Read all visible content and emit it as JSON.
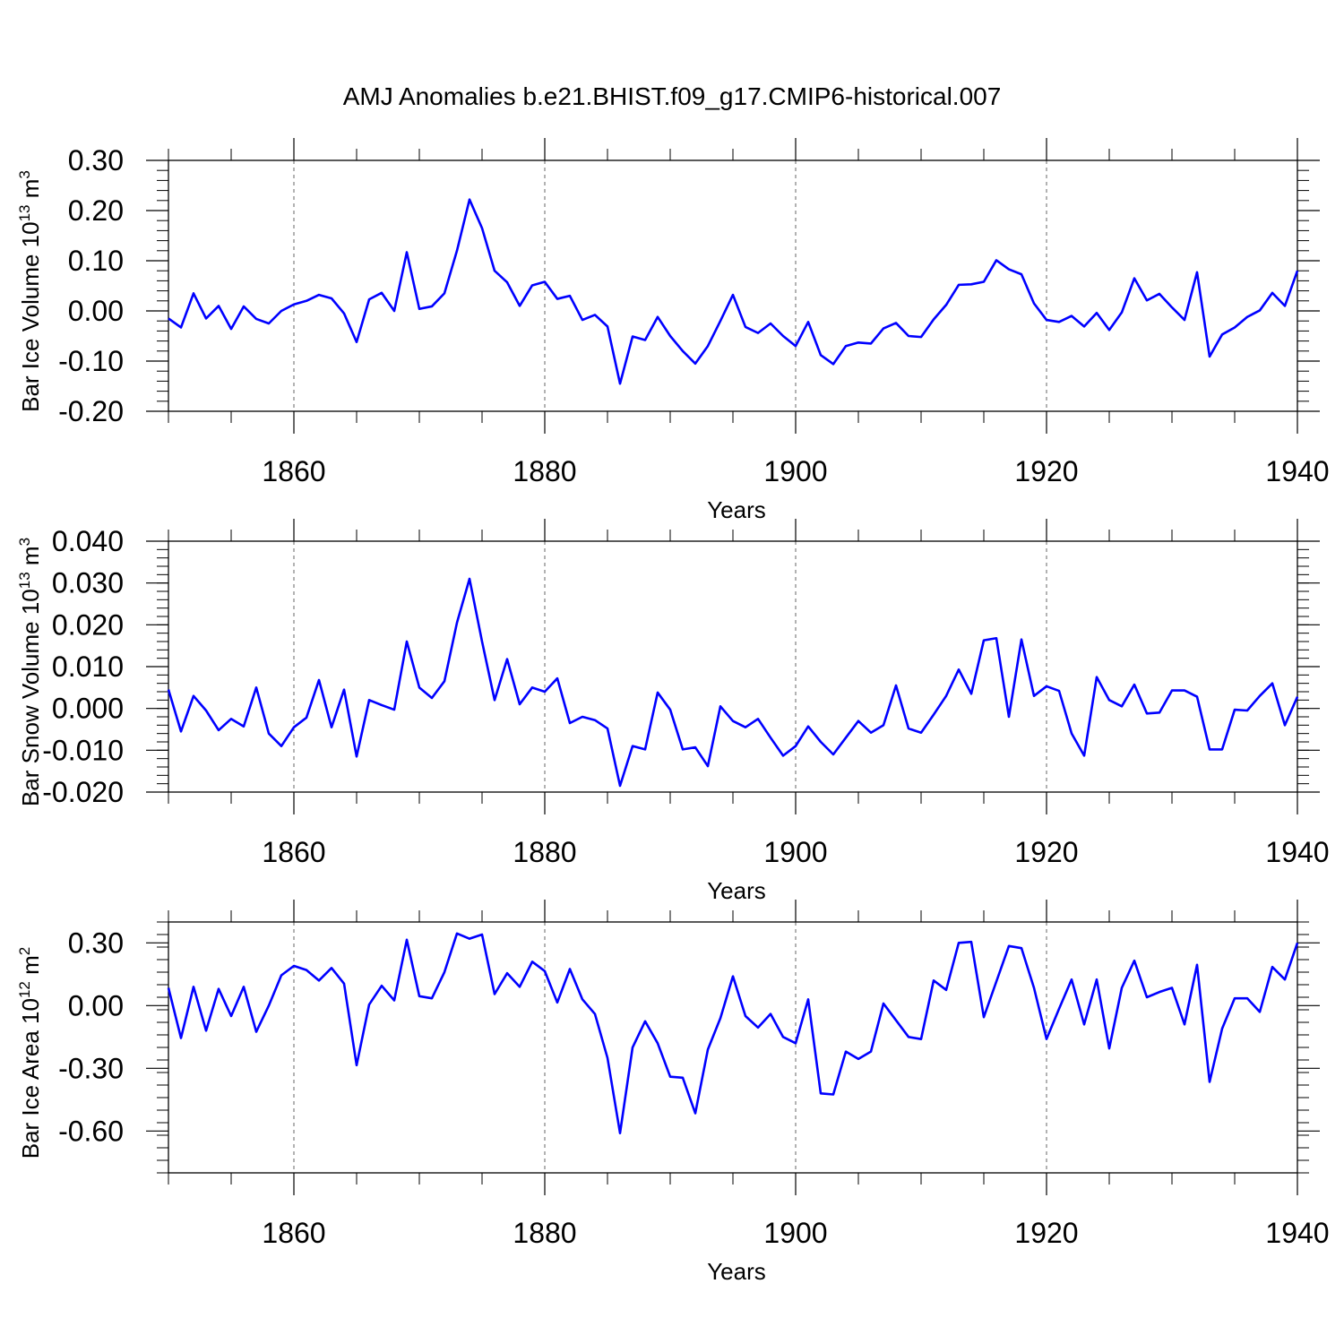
{
  "title": "AMJ Anomalies b.e21.BHIST.f09_g17.CMIP6-historical.007",
  "colors": {
    "series": "#0000ff",
    "axis": "#000000",
    "grid": "#666666"
  },
  "chart_data": [
    {
      "type": "line",
      "name": "Bar Ice Volume",
      "ylabel": "Bar Ice Volume 10^13 m^3",
      "ylabel_parts": {
        "base": "Bar Ice Volume 10",
        "exp1": "13",
        "unit": " m",
        "exp2": "3"
      },
      "xlabel": "Years",
      "xlim": [
        1850,
        1940
      ],
      "ylim": [
        -0.2,
        0.3
      ],
      "yticks": [
        -0.2,
        -0.1,
        0.0,
        0.1,
        0.2,
        0.3
      ],
      "ytick_labels": [
        "-0.20",
        "-0.10",
        "0.00",
        "0.10",
        "0.20",
        "0.30"
      ],
      "yminor_step": 0.02,
      "xticks": [
        1860,
        1880,
        1900,
        1920,
        1940
      ],
      "xtick_labels": [
        "1860",
        "1880",
        "1900",
        "1920",
        "1940"
      ],
      "x_start": 1850,
      "values": [
        -0.015,
        -0.033,
        0.035,
        -0.015,
        0.01,
        -0.036,
        0.009,
        -0.016,
        -0.025,
        0.0,
        0.013,
        0.02,
        0.032,
        0.025,
        -0.005,
        -0.062,
        0.023,
        0.036,
        0.0,
        0.117,
        0.004,
        0.009,
        0.035,
        0.12,
        0.222,
        0.165,
        0.08,
        0.057,
        0.01,
        0.051,
        0.058,
        0.024,
        0.03,
        -0.018,
        -0.008,
        -0.031,
        -0.145,
        -0.051,
        -0.058,
        -0.012,
        -0.05,
        -0.08,
        -0.105,
        -0.07,
        -0.02,
        0.032,
        -0.032,
        -0.044,
        -0.025,
        -0.05,
        -0.07,
        -0.022,
        -0.088,
        -0.106,
        -0.07,
        -0.063,
        -0.065,
        -0.035,
        -0.024,
        -0.05,
        -0.052,
        -0.017,
        0.012,
        0.052,
        0.053,
        0.058,
        0.101,
        0.083,
        0.073,
        0.015,
        -0.018,
        -0.022,
        -0.01,
        -0.031,
        -0.004,
        -0.038,
        -0.003,
        0.065,
        0.021,
        0.034,
        0.007,
        -0.018,
        0.077,
        -0.091,
        -0.047,
        -0.033,
        -0.012,
        0.001,
        0.036,
        0.01,
        0.08
      ]
    },
    {
      "type": "line",
      "name": "Bar Snow Volume",
      "ylabel": "Bar Snow Volume 10^13 m^3",
      "ylabel_parts": {
        "base": "Bar Snow Volume 10",
        "exp1": "13",
        "unit": " m",
        "exp2": "3"
      },
      "xlabel": "Years",
      "xlim": [
        1850,
        1940
      ],
      "ylim": [
        -0.02,
        0.04
      ],
      "yticks": [
        -0.02,
        -0.01,
        0.0,
        0.01,
        0.02,
        0.03,
        0.04
      ],
      "ytick_labels": [
        "-0.020",
        "-0.010",
        "0.000",
        "0.010",
        "0.020",
        "0.030",
        "0.040"
      ],
      "yminor_step": 0.002,
      "xticks": [
        1860,
        1880,
        1900,
        1920,
        1940
      ],
      "xtick_labels": [
        "1860",
        "1880",
        "1900",
        "1920",
        "1940"
      ],
      "x_start": 1850,
      "values": [
        0.0045,
        -0.0055,
        0.003,
        -0.0005,
        -0.0052,
        -0.0025,
        -0.0043,
        0.005,
        -0.006,
        -0.009,
        -0.0045,
        -0.0022,
        0.0068,
        -0.0045,
        0.0045,
        -0.0115,
        0.002,
        0.0008,
        -0.0003,
        0.016,
        0.005,
        0.0025,
        0.0065,
        0.0205,
        0.031,
        0.016,
        0.002,
        0.0118,
        0.001,
        0.005,
        0.004,
        0.0072,
        -0.0035,
        -0.002,
        -0.0028,
        -0.0048,
        -0.0185,
        -0.009,
        -0.0098,
        0.0038,
        -0.0003,
        -0.0098,
        -0.0093,
        -0.0138,
        0.0005,
        -0.003,
        -0.0045,
        -0.0025,
        -0.007,
        -0.0113,
        -0.009,
        -0.0043,
        -0.008,
        -0.011,
        -0.007,
        -0.003,
        -0.0058,
        -0.004,
        0.0055,
        -0.0048,
        -0.0058,
        -0.0015,
        0.003,
        0.0093,
        0.0035,
        0.0163,
        0.0168,
        -0.002,
        0.0165,
        0.003,
        0.0053,
        0.0042,
        -0.006,
        -0.0113,
        0.0075,
        0.002,
        0.0005,
        0.0057,
        -0.0012,
        -0.001,
        0.0043,
        0.0043,
        0.0028,
        -0.0098,
        -0.0098,
        -0.0003,
        -0.0005,
        0.003,
        0.006,
        -0.004,
        0.0028
      ]
    },
    {
      "type": "line",
      "name": "Bar Ice Area",
      "ylabel": "Bar Ice Area 10^12 m^2",
      "ylabel_parts": {
        "base": "Bar Ice Area 10",
        "exp1": "12",
        "unit": " m",
        "exp2": "2"
      },
      "xlabel": "Years",
      "xlim": [
        1850,
        1940
      ],
      "ylim": [
        -0.8,
        0.4
      ],
      "yticks": [
        -0.6,
        -0.3,
        0.0,
        0.3
      ],
      "ytick_labels": [
        "-0.60",
        "-0.30",
        "0.00",
        "0.30"
      ],
      "yminor_step": 0.06,
      "xticks": [
        1860,
        1880,
        1900,
        1920,
        1940
      ],
      "xtick_labels": [
        "1860",
        "1880",
        "1900",
        "1920",
        "1940"
      ],
      "x_start": 1850,
      "values": [
        0.085,
        -0.155,
        0.09,
        -0.12,
        0.08,
        -0.05,
        0.09,
        -0.125,
        0.0,
        0.145,
        0.19,
        0.17,
        0.12,
        0.18,
        0.105,
        -0.285,
        0.005,
        0.095,
        0.025,
        0.315,
        0.045,
        0.035,
        0.16,
        0.345,
        0.32,
        0.34,
        0.055,
        0.155,
        0.09,
        0.21,
        0.165,
        0.015,
        0.175,
        0.03,
        -0.04,
        -0.25,
        -0.61,
        -0.2,
        -0.075,
        -0.18,
        -0.34,
        -0.345,
        -0.515,
        -0.21,
        -0.06,
        0.14,
        -0.05,
        -0.105,
        -0.04,
        -0.15,
        -0.18,
        0.03,
        -0.42,
        -0.425,
        -0.22,
        -0.255,
        -0.22,
        0.01,
        -0.07,
        -0.15,
        -0.16,
        0.12,
        0.075,
        0.3,
        0.305,
        -0.055,
        0.115,
        0.285,
        0.275,
        0.085,
        -0.16,
        -0.015,
        0.125,
        -0.09,
        0.125,
        -0.205,
        0.085,
        0.215,
        0.04,
        0.065,
        0.085,
        -0.09,
        0.195,
        -0.365,
        -0.11,
        0.035,
        0.035,
        -0.03,
        0.185,
        0.125,
        0.3
      ]
    }
  ]
}
